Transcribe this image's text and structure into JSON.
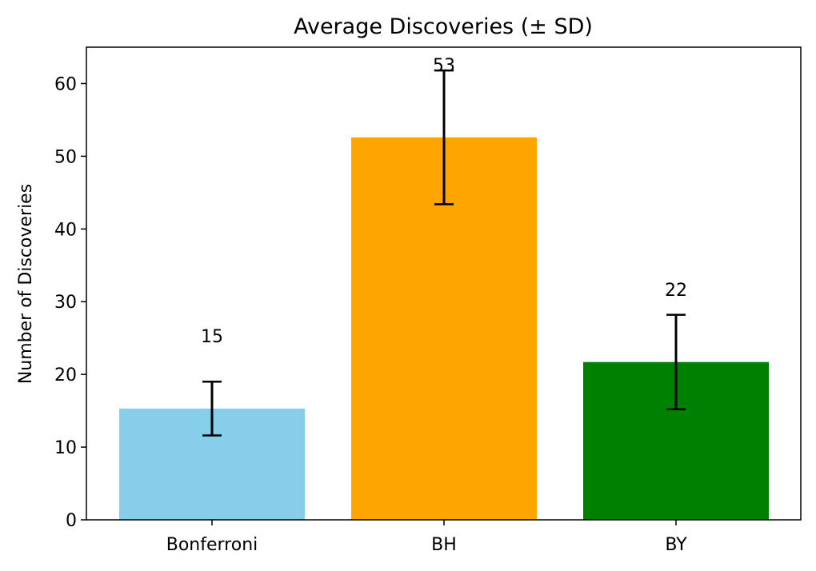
{
  "chart_data": {
    "type": "bar",
    "title": "Average Discoveries (± SD)",
    "xlabel": "",
    "ylabel": "Number of Discoveries",
    "categories": [
      "Bonferroni",
      "BH",
      "BY"
    ],
    "values": [
      15.3,
      52.6,
      21.7
    ],
    "errors": [
      3.7,
      9.2,
      6.5
    ],
    "data_labels": [
      "15",
      "53",
      "22"
    ],
    "colors": [
      "#87ceeb",
      "#ffa500",
      "#008000"
    ],
    "ylim": [
      0,
      65
    ],
    "yticks": [
      0,
      10,
      20,
      30,
      40,
      50,
      60
    ],
    "grid": false,
    "legend": "none"
  }
}
